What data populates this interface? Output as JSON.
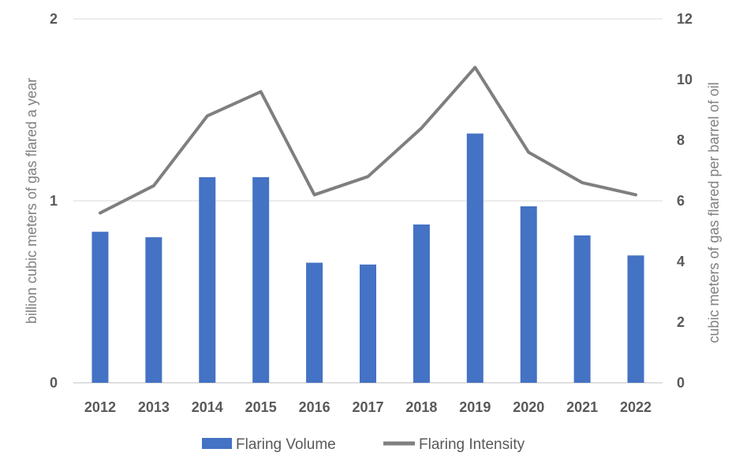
{
  "chart_data": {
    "type": "bar",
    "categories": [
      "2012",
      "2013",
      "2014",
      "2015",
      "2016",
      "2017",
      "2018",
      "2019",
      "2020",
      "2021",
      "2022"
    ],
    "series": [
      {
        "name": "Flaring Volume",
        "type": "bar",
        "axis": "left",
        "color": "#4472C4",
        "values": [
          0.83,
          0.8,
          1.13,
          1.13,
          0.66,
          0.65,
          0.87,
          1.37,
          0.97,
          0.81,
          0.7
        ]
      },
      {
        "name": "Flaring Intensity",
        "type": "line",
        "axis": "right",
        "color": "#7F7F7F",
        "values": [
          5.6,
          6.5,
          8.8,
          9.6,
          6.2,
          6.8,
          8.4,
          10.4,
          7.6,
          6.6,
          6.2
        ]
      }
    ],
    "ylabel": "billion cubic meters of gas flared a year",
    "y2label": "cubic meters of gas flared per barrel of oil",
    "ylim": [
      0,
      2
    ],
    "yticks": [
      "0",
      "1",
      "2"
    ],
    "y2lim": [
      0,
      12
    ],
    "y2ticks": [
      "0",
      "2",
      "4",
      "6",
      "8",
      "10",
      "12"
    ],
    "grid": true,
    "legend_position": "bottom"
  }
}
